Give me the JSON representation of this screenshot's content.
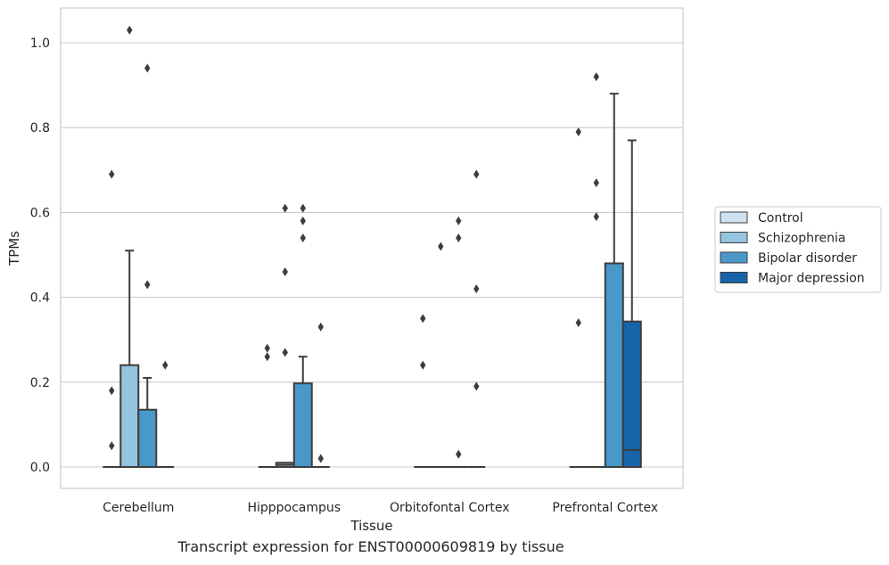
{
  "caption": "Transcript expression for ENST00000609819 by tissue",
  "chart_data": {
    "type": "box",
    "title": "",
    "xlabel": "Tissue",
    "ylabel": "TPMs",
    "categories": [
      "Cerebellum",
      "Hipppocampus",
      "Orbitofontal Cortex",
      "Prefrontal Cortex"
    ],
    "ylim": [
      -0.05,
      1.08
    ],
    "yticks": [
      0.0,
      0.2,
      0.4,
      0.6,
      0.8,
      1.0
    ],
    "ytick_labels": [
      "0.0",
      "0.2",
      "0.4",
      "0.6",
      "0.8",
      "1.0"
    ],
    "grid": "horizontal",
    "legend_position": "outside-right",
    "series": [
      {
        "name": "Control",
        "color": "#d0e1f2",
        "boxes": [
          {
            "q1": 0,
            "median": 0,
            "q3": 0,
            "whisker_low": 0,
            "whisker_high": 0,
            "outliers": [
              0.05,
              0.18,
              0.69
            ]
          },
          {
            "q1": 0,
            "median": 0,
            "q3": 0,
            "whisker_low": 0,
            "whisker_high": 0,
            "outliers": [
              0.26,
              0.28
            ]
          },
          {
            "q1": 0,
            "median": 0,
            "q3": 0,
            "whisker_low": 0,
            "whisker_high": 0,
            "outliers": [
              0.24,
              0.35
            ]
          },
          {
            "q1": 0,
            "median": 0,
            "q3": 0,
            "whisker_low": 0,
            "whisker_high": 0,
            "outliers": [
              0.34,
              0.79
            ]
          }
        ]
      },
      {
        "name": "Schizophrenia",
        "color": "#94c4df",
        "boxes": [
          {
            "q1": 0,
            "median": 0,
            "q3": 0.24,
            "whisker_low": 0,
            "whisker_high": 0.51,
            "outliers": [
              1.03
            ]
          },
          {
            "q1": 0,
            "median": 0.005,
            "q3": 0.01,
            "whisker_low": 0,
            "whisker_high": 0.01,
            "outliers": [
              0.27,
              0.46,
              0.61
            ]
          },
          {
            "q1": 0,
            "median": 0,
            "q3": 0,
            "whisker_low": 0,
            "whisker_high": 0,
            "outliers": [
              0.52
            ]
          },
          {
            "q1": 0,
            "median": 0,
            "q3": 0,
            "whisker_low": 0,
            "whisker_high": 0,
            "outliers": [
              0.59,
              0.67,
              0.92
            ]
          }
        ]
      },
      {
        "name": "Bipolar disorder",
        "color": "#4a98c9",
        "boxes": [
          {
            "q1": 0,
            "median": 0,
            "q3": 0.135,
            "whisker_low": 0,
            "whisker_high": 0.21,
            "outliers": [
              0.43,
              0.94
            ]
          },
          {
            "q1": 0,
            "median": 0,
            "q3": 0.197,
            "whisker_low": 0,
            "whisker_high": 0.26,
            "outliers": [
              0.54,
              0.58,
              0.61
            ]
          },
          {
            "q1": 0,
            "median": 0,
            "q3": 0,
            "whisker_low": 0,
            "whisker_high": 0,
            "outliers": [
              0.03,
              0.54,
              0.58
            ]
          },
          {
            "q1": 0,
            "median": 0,
            "q3": 0.48,
            "whisker_low": 0,
            "whisker_high": 0.88,
            "outliers": []
          }
        ]
      },
      {
        "name": "Major depression",
        "color": "#1764ab",
        "boxes": [
          {
            "q1": 0,
            "median": 0,
            "q3": 0,
            "whisker_low": 0,
            "whisker_high": 0,
            "outliers": [
              0.24
            ]
          },
          {
            "q1": 0,
            "median": 0,
            "q3": 0,
            "whisker_low": 0,
            "whisker_high": 0,
            "outliers": [
              0.02,
              0.33
            ]
          },
          {
            "q1": 0,
            "median": 0,
            "q3": 0,
            "whisker_low": 0,
            "whisker_high": 0,
            "outliers": [
              0.19,
              0.42,
              0.69
            ]
          },
          {
            "q1": 0,
            "median": 0.04,
            "q3": 0.343,
            "whisker_low": 0,
            "whisker_high": 0.77,
            "outliers": []
          }
        ]
      }
    ]
  }
}
